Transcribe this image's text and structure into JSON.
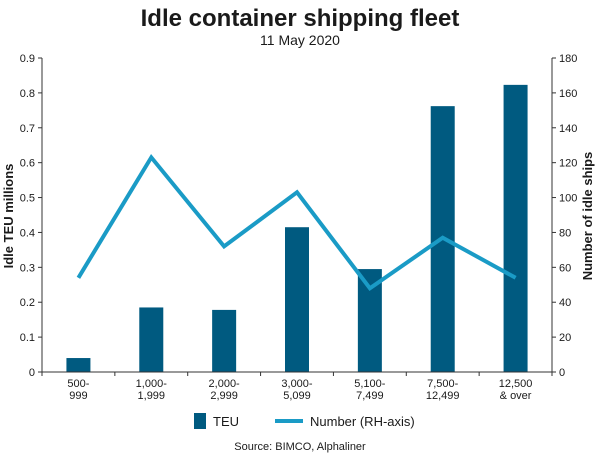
{
  "chart_data": {
    "type": "bar",
    "title": "Idle container shipping fleet",
    "subtitle": "11 May 2020",
    "categories": [
      [
        "500-",
        "999"
      ],
      [
        "1,000-",
        "1,999"
      ],
      [
        "2,000-",
        "2,999"
      ],
      [
        "3,000-",
        "5,099"
      ],
      [
        "5,100-",
        "7,499"
      ],
      [
        "7,500-",
        "12,499"
      ],
      [
        "12,500",
        "& over"
      ]
    ],
    "series": [
      {
        "name": "TEU",
        "type": "bar",
        "axis": "left",
        "color": "#005a80",
        "values": [
          0.04,
          0.185,
          0.178,
          0.415,
          0.295,
          0.762,
          0.823
        ]
      },
      {
        "name": "Number (RH-axis)",
        "type": "line",
        "axis": "right",
        "color": "#1a9bc6",
        "values": [
          54,
          123,
          72,
          103,
          48,
          77,
          54
        ]
      }
    ],
    "ylabel": "Idle TEU millions",
    "y2label": "Number of idle ships",
    "ylim": [
      0,
      0.9
    ],
    "y2lim": [
      0,
      180
    ],
    "yticks": [
      "0",
      "0.1",
      "0.2",
      "0.3",
      "0.4",
      "0.5",
      "0.6",
      "0.7",
      "0.8",
      "0.9"
    ],
    "y2ticks": [
      "0",
      "20",
      "40",
      "60",
      "80",
      "100",
      "120",
      "140",
      "160",
      "180"
    ],
    "grid": false,
    "legend_position": "bottom",
    "source": "Source: BIMCO, Alphaliner"
  }
}
